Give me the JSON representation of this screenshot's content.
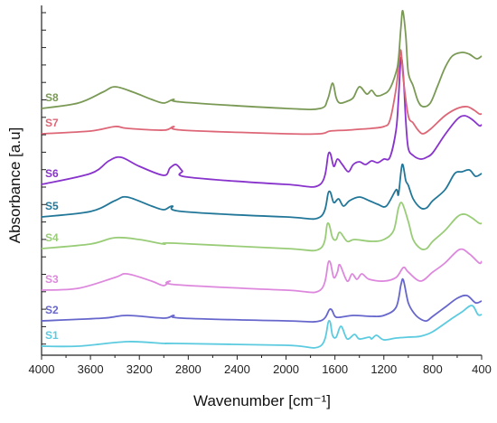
{
  "chart_data": {
    "type": "line",
    "title": "",
    "xlabel": "Wavenumber [cm⁻¹]",
    "ylabel": "Absorbance [a.u]",
    "xlim": [
      4000,
      400
    ],
    "x_reversed": true,
    "x_ticks": [
      4000,
      3600,
      3200,
      2800,
      2400,
      2000,
      1600,
      1200,
      800,
      400
    ],
    "y_ticks_labeled": false,
    "grid": false,
    "legend": "inline series labels at left",
    "series": [
      {
        "name": "S1",
        "color": "#5ccbe0",
        "baseline": 383,
        "points": [
          [
            4000,
            0
          ],
          [
            3700,
            0
          ],
          [
            3300,
            -5
          ],
          [
            3000,
            -3
          ],
          [
            2900,
            -3
          ],
          [
            2000,
            -1
          ],
          [
            1720,
            0
          ],
          [
            1650,
            -28
          ],
          [
            1620,
            -12
          ],
          [
            1590,
            -10
          ],
          [
            1550,
            -22
          ],
          [
            1500,
            -8
          ],
          [
            1440,
            -13
          ],
          [
            1400,
            -8
          ],
          [
            1320,
            -10
          ],
          [
            1300,
            -8
          ],
          [
            1260,
            -12
          ],
          [
            1200,
            -7
          ],
          [
            1100,
            -9
          ],
          [
            1000,
            -10
          ],
          [
            900,
            -11
          ],
          [
            800,
            -16
          ],
          [
            650,
            -30
          ],
          [
            560,
            -38
          ],
          [
            480,
            -45
          ],
          [
            430,
            -35
          ],
          [
            400,
            -35
          ]
        ]
      },
      {
        "name": "S2",
        "color": "#6666cc",
        "baseline": 355,
        "points": [
          [
            4000,
            0
          ],
          [
            3500,
            -3
          ],
          [
            3300,
            -6
          ],
          [
            3000,
            -3
          ],
          [
            2920,
            -6
          ],
          [
            2850,
            -3
          ],
          [
            2000,
            0
          ],
          [
            1720,
            0
          ],
          [
            1640,
            -13
          ],
          [
            1600,
            -5
          ],
          [
            1560,
            -4
          ],
          [
            1450,
            -6
          ],
          [
            1300,
            -5
          ],
          [
            1200,
            -6
          ],
          [
            1100,
            -15
          ],
          [
            1060,
            -40
          ],
          [
            1040,
            -45
          ],
          [
            1000,
            -20
          ],
          [
            950,
            -8
          ],
          [
            900,
            -2
          ],
          [
            850,
            0
          ],
          [
            800,
            -5
          ],
          [
            700,
            -15
          ],
          [
            600,
            -25
          ],
          [
            520,
            -28
          ],
          [
            450,
            -20
          ],
          [
            400,
            -22
          ]
        ]
      },
      {
        "name": "S3",
        "color": "#dd88dd",
        "baseline": 321,
        "points": [
          [
            4000,
            0
          ],
          [
            3700,
            -2
          ],
          [
            3400,
            -14
          ],
          [
            3300,
            -18
          ],
          [
            3100,
            -10
          ],
          [
            3000,
            -5
          ],
          [
            2950,
            -10
          ],
          [
            2900,
            -6
          ],
          [
            2000,
            0
          ],
          [
            1720,
            0
          ],
          [
            1650,
            -32
          ],
          [
            1610,
            -14
          ],
          [
            1580,
            -20
          ],
          [
            1560,
            -28
          ],
          [
            1500,
            -10
          ],
          [
            1460,
            -18
          ],
          [
            1420,
            -12
          ],
          [
            1380,
            -18
          ],
          [
            1320,
            -12
          ],
          [
            1200,
            -10
          ],
          [
            1100,
            -14
          ],
          [
            1040,
            -25
          ],
          [
            1000,
            -20
          ],
          [
            900,
            -10
          ],
          [
            800,
            -20
          ],
          [
            700,
            -30
          ],
          [
            580,
            -45
          ],
          [
            500,
            -40
          ],
          [
            420,
            -30
          ],
          [
            400,
            -32
          ]
        ]
      },
      {
        "name": "S4",
        "color": "#99cc77",
        "baseline": 275,
        "points": [
          [
            4000,
            0
          ],
          [
            3600,
            -5
          ],
          [
            3400,
            -12
          ],
          [
            3200,
            -10
          ],
          [
            3000,
            -5
          ],
          [
            2920,
            -6
          ],
          [
            2000,
            0
          ],
          [
            1720,
            0
          ],
          [
            1660,
            -28
          ],
          [
            1620,
            -12
          ],
          [
            1590,
            -10
          ],
          [
            1560,
            -18
          ],
          [
            1500,
            -8
          ],
          [
            1440,
            -10
          ],
          [
            1300,
            -8
          ],
          [
            1200,
            -10
          ],
          [
            1120,
            -20
          ],
          [
            1080,
            -45
          ],
          [
            1050,
            -50
          ],
          [
            1000,
            -30
          ],
          [
            960,
            -10
          ],
          [
            900,
            0
          ],
          [
            850,
            0
          ],
          [
            800,
            -8
          ],
          [
            700,
            -20
          ],
          [
            600,
            -35
          ],
          [
            540,
            -38
          ],
          [
            480,
            -34
          ],
          [
            420,
            -28
          ],
          [
            400,
            -28
          ]
        ]
      },
      {
        "name": "S5",
        "color": "#227799",
        "baseline": 240,
        "points": [
          [
            4000,
            0
          ],
          [
            3600,
            -6
          ],
          [
            3400,
            -18
          ],
          [
            3300,
            -22
          ],
          [
            3100,
            -12
          ],
          [
            3000,
            -8
          ],
          [
            2930,
            -12
          ],
          [
            2850,
            -6
          ],
          [
            2000,
            0
          ],
          [
            1720,
            0
          ],
          [
            1650,
            -28
          ],
          [
            1610,
            -16
          ],
          [
            1570,
            -20
          ],
          [
            1530,
            -12
          ],
          [
            1480,
            -18
          ],
          [
            1400,
            -22
          ],
          [
            1320,
            -18
          ],
          [
            1250,
            -14
          ],
          [
            1180,
            -12
          ],
          [
            1100,
            -30
          ],
          [
            1080,
            -25
          ],
          [
            1050,
            -58
          ],
          [
            1020,
            -40
          ],
          [
            1000,
            -35
          ],
          [
            960,
            -20
          ],
          [
            900,
            -10
          ],
          [
            850,
            -10
          ],
          [
            800,
            -18
          ],
          [
            700,
            -30
          ],
          [
            620,
            -48
          ],
          [
            560,
            -50
          ],
          [
            500,
            -52
          ],
          [
            450,
            -45
          ],
          [
            400,
            -48
          ]
        ]
      },
      {
        "name": "S6",
        "color": "#8833cc",
        "baseline": 204,
        "points": [
          [
            4000,
            0
          ],
          [
            3600,
            -12
          ],
          [
            3450,
            -26
          ],
          [
            3350,
            -30
          ],
          [
            3200,
            -20
          ],
          [
            3000,
            -10
          ],
          [
            2950,
            -18
          ],
          [
            2900,
            -22
          ],
          [
            2850,
            -15
          ],
          [
            2800,
            -8
          ],
          [
            2000,
            0
          ],
          [
            1720,
            0
          ],
          [
            1650,
            -35
          ],
          [
            1610,
            -20
          ],
          [
            1580,
            -28
          ],
          [
            1540,
            -22
          ],
          [
            1490,
            -14
          ],
          [
            1450,
            -22
          ],
          [
            1400,
            -25
          ],
          [
            1350,
            -22
          ],
          [
            1300,
            -26
          ],
          [
            1250,
            -24
          ],
          [
            1200,
            -28
          ],
          [
            1150,
            -30
          ],
          [
            1100,
            -60
          ],
          [
            1080,
            -95
          ],
          [
            1060,
            -140
          ],
          [
            1040,
            -120
          ],
          [
            1020,
            -70
          ],
          [
            1000,
            -40
          ],
          [
            960,
            -32
          ],
          [
            900,
            -28
          ],
          [
            850,
            -30
          ],
          [
            800,
            -35
          ],
          [
            700,
            -55
          ],
          [
            600,
            -72
          ],
          [
            540,
            -76
          ],
          [
            480,
            -72
          ],
          [
            420,
            -65
          ],
          [
            400,
            -66
          ]
        ]
      },
      {
        "name": "S7",
        "color": "#dd6677",
        "baseline": 148,
        "points": [
          [
            4000,
            0
          ],
          [
            3600,
            -3
          ],
          [
            3400,
            -8
          ],
          [
            3300,
            -6
          ],
          [
            3000,
            -4
          ],
          [
            2920,
            -8
          ],
          [
            2850,
            -4
          ],
          [
            2000,
            0
          ],
          [
            1720,
            0
          ],
          [
            1640,
            -3
          ],
          [
            1500,
            -4
          ],
          [
            1400,
            -5
          ],
          [
            1300,
            -6
          ],
          [
            1200,
            -8
          ],
          [
            1150,
            -15
          ],
          [
            1100,
            -50
          ],
          [
            1075,
            -80
          ],
          [
            1060,
            -92
          ],
          [
            1040,
            -60
          ],
          [
            1000,
            -20
          ],
          [
            960,
            -12
          ],
          [
            920,
            -4
          ],
          [
            880,
            0
          ],
          [
            820,
            -5
          ],
          [
            700,
            -20
          ],
          [
            600,
            -28
          ],
          [
            520,
            -30
          ],
          [
            460,
            -26
          ],
          [
            420,
            -22
          ],
          [
            400,
            -22
          ]
        ]
      },
      {
        "name": "S8",
        "color": "#7a9955",
        "baseline": 120,
        "points": [
          [
            4000,
            0
          ],
          [
            3700,
            -6
          ],
          [
            3500,
            -18
          ],
          [
            3400,
            -24
          ],
          [
            3250,
            -18
          ],
          [
            3100,
            -10
          ],
          [
            3000,
            -6
          ],
          [
            2920,
            -10
          ],
          [
            2850,
            -7
          ],
          [
            2000,
            0
          ],
          [
            1720,
            0
          ],
          [
            1660,
            -10
          ],
          [
            1620,
            -28
          ],
          [
            1590,
            -12
          ],
          [
            1560,
            -6
          ],
          [
            1500,
            -8
          ],
          [
            1450,
            -12
          ],
          [
            1400,
            -24
          ],
          [
            1340,
            -16
          ],
          [
            1300,
            -20
          ],
          [
            1260,
            -14
          ],
          [
            1200,
            -16
          ],
          [
            1150,
            -22
          ],
          [
            1100,
            -40
          ],
          [
            1080,
            -55
          ],
          [
            1060,
            -90
          ],
          [
            1045,
            -108
          ],
          [
            1020,
            -80
          ],
          [
            1000,
            -40
          ],
          [
            960,
            -25
          ],
          [
            920,
            -8
          ],
          [
            880,
            -2
          ],
          [
            820,
            -6
          ],
          [
            760,
            -25
          ],
          [
            700,
            -45
          ],
          [
            640,
            -58
          ],
          [
            560,
            -62
          ],
          [
            500,
            -60
          ],
          [
            440,
            -55
          ],
          [
            400,
            -58
          ]
        ]
      }
    ]
  }
}
